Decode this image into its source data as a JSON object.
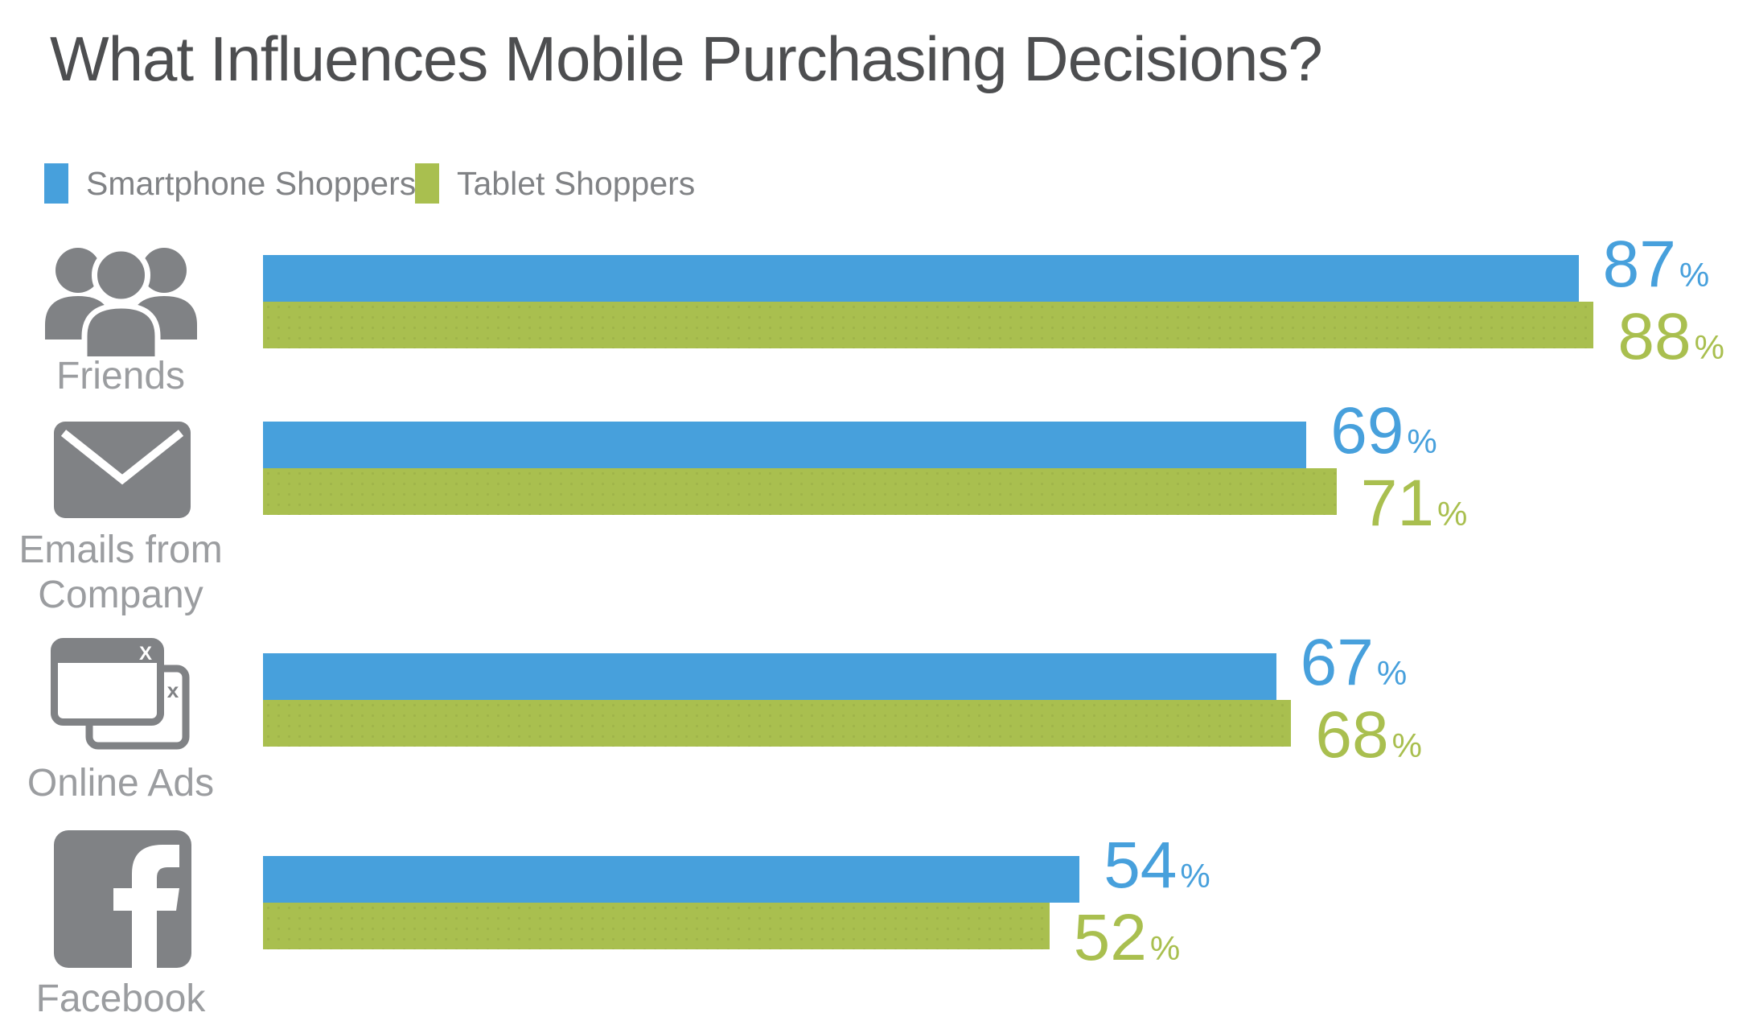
{
  "title": "What Influences Mobile Purchasing Decisions?",
  "unit": "%",
  "legend": {
    "smartphone": {
      "label": "Smartphone Shoppers",
      "color": "#47A0DC"
    },
    "tablet": {
      "label": "Tablet Shoppers",
      "color": "#A9BF4F"
    }
  },
  "colors": {
    "smartphone_blue": "#47A0DC",
    "tablet_green": "#A9BF4F",
    "icon_gray": "#808285",
    "category_label_gray": "#9B9DA0",
    "title_gray": "#4D4E50"
  },
  "chart_data": {
    "type": "bar",
    "orientation": "horizontal",
    "title": "What Influences Mobile Purchasing Decisions?",
    "categories": [
      "Friends",
      "Emails from Company",
      "Online Ads",
      "Facebook"
    ],
    "series": [
      {
        "name": "Smartphone Shoppers",
        "color": "#47A0DC",
        "values": [
          87,
          69,
          67,
          54
        ]
      },
      {
        "name": "Tablet Shoppers",
        "color": "#A9BF4F",
        "values": [
          88,
          71,
          68,
          52
        ]
      }
    ],
    "unit": "%",
    "xlim": [
      0,
      100
    ],
    "grid": false,
    "legend_position": "top-left",
    "value_labels": "end-of-bar",
    "rows": [
      {
        "label": "Friends",
        "icon": "friends-icon",
        "smartphone": 87,
        "tablet": 88
      },
      {
        "label": "Emails from\nCompany",
        "icon": "email-icon",
        "smartphone": 69,
        "tablet": 71
      },
      {
        "label": "Online Ads",
        "icon": "online-ads-icon",
        "smartphone": 67,
        "tablet": 68
      },
      {
        "label": "Facebook",
        "icon": "facebook-icon",
        "smartphone": 54,
        "tablet": 52
      }
    ]
  }
}
